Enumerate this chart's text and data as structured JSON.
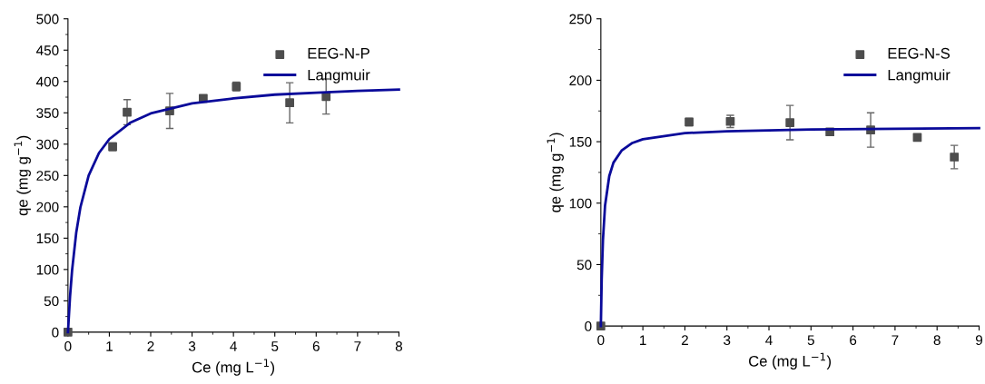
{
  "chart_data": [
    {
      "type": "scatter",
      "xlabel": "Ce (mg L$^{−1}$)",
      "ylabel": "qe (mg g$^{−1}$)",
      "xlim": [
        0,
        8
      ],
      "ylim": [
        0,
        500
      ],
      "xticks": [
        0,
        1,
        2,
        3,
        4,
        5,
        6,
        7,
        8
      ],
      "yticks": [
        0,
        50,
        100,
        150,
        200,
        250,
        300,
        350,
        400,
        450,
        500
      ],
      "legend": "top right",
      "grid": false,
      "series": [
        {
          "name": "EEG-N-P",
          "marker": "square",
          "color": "#4d4d4d",
          "x": [
            0,
            1.08,
            1.43,
            2.46,
            3.27,
            4.07,
            5.36,
            6.24
          ],
          "values": [
            0,
            296,
            351,
            353,
            373,
            392,
            366,
            376
          ],
          "errors": [
            null,
            6,
            20,
            28,
            4,
            7,
            32,
            28
          ]
        },
        {
          "name": "Langmuir",
          "type": "line",
          "color": "#0a0a9a",
          "x": [
            0,
            0.05,
            0.1,
            0.2,
            0.3,
            0.5,
            0.75,
            1,
            1.5,
            2,
            3,
            4,
            5,
            6,
            7,
            8
          ],
          "values": [
            0,
            57,
            99,
            159,
            199,
            250,
            286,
            308,
            334,
            349,
            365,
            373,
            379,
            382,
            385,
            387
          ]
        }
      ]
    },
    {
      "type": "scatter",
      "xlabel": "Ce (mg L$^{−1}$)",
      "ylabel": "qe (mg g$^{−1}$)",
      "xlim": [
        0,
        9
      ],
      "ylim": [
        0,
        250
      ],
      "xticks": [
        0,
        1,
        2,
        3,
        4,
        5,
        6,
        7,
        8,
        9
      ],
      "yticks": [
        0,
        50,
        100,
        150,
        200,
        250
      ],
      "legend": "top right",
      "grid": false,
      "series": [
        {
          "name": "EEG-N-S",
          "marker": "square",
          "color": "#4d4d4d",
          "x": [
            0,
            2.1,
            3.08,
            4.5,
            5.45,
            6.42,
            7.53,
            8.41
          ],
          "values": [
            0,
            166,
            166.5,
            165.5,
            158,
            159.5,
            153.5,
            137.5
          ],
          "errors": [
            null,
            3,
            5,
            14,
            1,
            14,
            2,
            9.5
          ]
        },
        {
          "name": "Langmuir",
          "type": "line",
          "color": "#0a0a9a",
          "x": [
            0,
            0.02,
            0.05,
            0.1,
            0.2,
            0.3,
            0.5,
            0.75,
            1,
            2,
            3,
            5,
            7,
            9
          ],
          "values": [
            0,
            38,
            70,
            98,
            122,
            133,
            143,
            149,
            152,
            157,
            158.5,
            160,
            160.5,
            161
          ]
        }
      ]
    }
  ]
}
